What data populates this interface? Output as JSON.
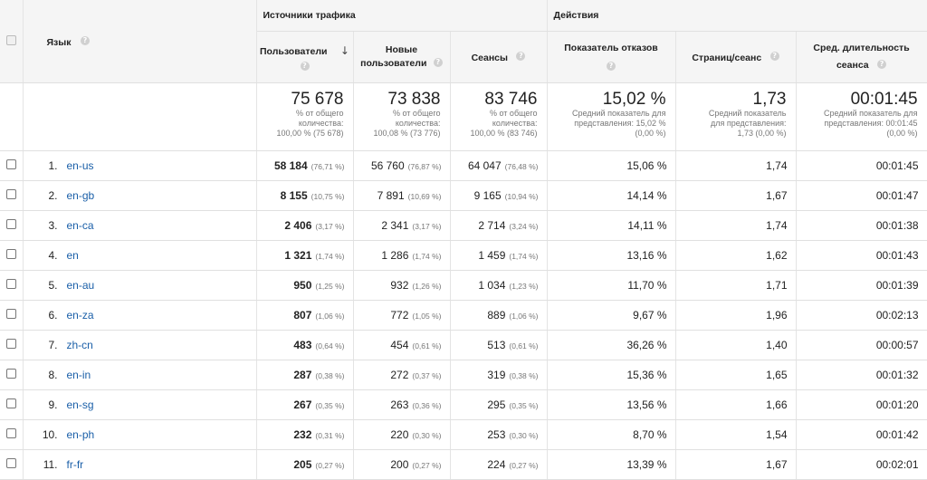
{
  "header": {
    "language_label": "Язык",
    "group_traffic": "Источники трафика",
    "group_actions": "Действия",
    "col_users": "Пользователи",
    "col_new_users_line1": "Новые",
    "col_new_users_line2": "пользователи",
    "col_sessions": "Сеансы",
    "col_bounce": "Показатель отказов",
    "col_pages": "Страниц/сеанс",
    "col_duration_line1": "Сред. длительность",
    "col_duration_line2": "сеанса",
    "help_glyph": "?",
    "sort_glyph": "↓"
  },
  "totals": {
    "users": {
      "value": "75 678",
      "l1": "% от общего",
      "l2": "количества:",
      "l3": "100,00 % (75 678)"
    },
    "new_users": {
      "value": "73 838",
      "l1": "% от общего",
      "l2": "количества:",
      "l3": "100,08 % (73 776)"
    },
    "sessions": {
      "value": "83 746",
      "l1": "% от общего",
      "l2": "количества:",
      "l3": "100,00 % (83 746)"
    },
    "bounce": {
      "value": "15,02 %",
      "l1": "Средний показатель для",
      "l2": "представления: 15,02 %",
      "l3": "(0,00 %)"
    },
    "pages": {
      "value": "1,73",
      "l1": "Средний показатель",
      "l2": "для представления:",
      "l3": "1,73 (0,00 %)"
    },
    "duration": {
      "value": "00:01:45",
      "l1": "Средний показатель для",
      "l2": "представления: 00:01:45",
      "l3": "(0,00 %)"
    }
  },
  "rows": [
    {
      "idx": "1.",
      "lang": "en-us",
      "users": "58 184",
      "users_pct": "(76,71 %)",
      "new_users": "56 760",
      "new_users_pct": "(76,87 %)",
      "sessions": "64 047",
      "sessions_pct": "(76,48 %)",
      "bounce": "15,06 %",
      "pages": "1,74",
      "duration": "00:01:45"
    },
    {
      "idx": "2.",
      "lang": "en-gb",
      "users": "8 155",
      "users_pct": "(10,75 %)",
      "new_users": "7 891",
      "new_users_pct": "(10,69 %)",
      "sessions": "9 165",
      "sessions_pct": "(10,94 %)",
      "bounce": "14,14 %",
      "pages": "1,67",
      "duration": "00:01:47"
    },
    {
      "idx": "3.",
      "lang": "en-ca",
      "users": "2 406",
      "users_pct": "(3,17 %)",
      "new_users": "2 341",
      "new_users_pct": "(3,17 %)",
      "sessions": "2 714",
      "sessions_pct": "(3,24 %)",
      "bounce": "14,11 %",
      "pages": "1,74",
      "duration": "00:01:38"
    },
    {
      "idx": "4.",
      "lang": "en",
      "users": "1 321",
      "users_pct": "(1,74 %)",
      "new_users": "1 286",
      "new_users_pct": "(1,74 %)",
      "sessions": "1 459",
      "sessions_pct": "(1,74 %)",
      "bounce": "13,16 %",
      "pages": "1,62",
      "duration": "00:01:43"
    },
    {
      "idx": "5.",
      "lang": "en-au",
      "users": "950",
      "users_pct": "(1,25 %)",
      "new_users": "932",
      "new_users_pct": "(1,26 %)",
      "sessions": "1 034",
      "sessions_pct": "(1,23 %)",
      "bounce": "11,70 %",
      "pages": "1,71",
      "duration": "00:01:39"
    },
    {
      "idx": "6.",
      "lang": "en-za",
      "users": "807",
      "users_pct": "(1,06 %)",
      "new_users": "772",
      "new_users_pct": "(1,05 %)",
      "sessions": "889",
      "sessions_pct": "(1,06 %)",
      "bounce": "9,67 %",
      "pages": "1,96",
      "duration": "00:02:13"
    },
    {
      "idx": "7.",
      "lang": "zh-cn",
      "users": "483",
      "users_pct": "(0,64 %)",
      "new_users": "454",
      "new_users_pct": "(0,61 %)",
      "sessions": "513",
      "sessions_pct": "(0,61 %)",
      "bounce": "36,26 %",
      "pages": "1,40",
      "duration": "00:00:57"
    },
    {
      "idx": "8.",
      "lang": "en-in",
      "users": "287",
      "users_pct": "(0,38 %)",
      "new_users": "272",
      "new_users_pct": "(0,37 %)",
      "sessions": "319",
      "sessions_pct": "(0,38 %)",
      "bounce": "15,36 %",
      "pages": "1,65",
      "duration": "00:01:32"
    },
    {
      "idx": "9.",
      "lang": "en-sg",
      "users": "267",
      "users_pct": "(0,35 %)",
      "new_users": "263",
      "new_users_pct": "(0,36 %)",
      "sessions": "295",
      "sessions_pct": "(0,35 %)",
      "bounce": "13,56 %",
      "pages": "1,66",
      "duration": "00:01:20"
    },
    {
      "idx": "10.",
      "lang": "en-ph",
      "users": "232",
      "users_pct": "(0,31 %)",
      "new_users": "220",
      "new_users_pct": "(0,30 %)",
      "sessions": "253",
      "sessions_pct": "(0,30 %)",
      "bounce": "8,70 %",
      "pages": "1,54",
      "duration": "00:01:42"
    },
    {
      "idx": "11.",
      "lang": "fr-fr",
      "users": "205",
      "users_pct": "(0,27 %)",
      "new_users": "200",
      "new_users_pct": "(0,27 %)",
      "sessions": "224",
      "sessions_pct": "(0,27 %)",
      "bounce": "13,39 %",
      "pages": "1,67",
      "duration": "00:02:01"
    }
  ]
}
